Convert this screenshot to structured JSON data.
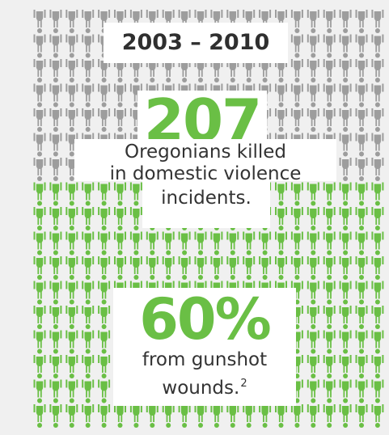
{
  "period": {
    "years": "2003 – 2010"
  },
  "killed": {
    "number": "207",
    "caption_lines": [
      "Oregonians killed",
      "in domestic violence",
      "incidents."
    ]
  },
  "gunshot": {
    "percent": "60%",
    "caption_line_1": "from gunshot",
    "caption_line_2": "wounds.",
    "footnote_marker": "2"
  },
  "figure_grid": {
    "icon": "person-figure-icon",
    "colors": {
      "gray": "#9d9d9d",
      "green": "#6abf45"
    },
    "green_share": 0.6
  }
}
